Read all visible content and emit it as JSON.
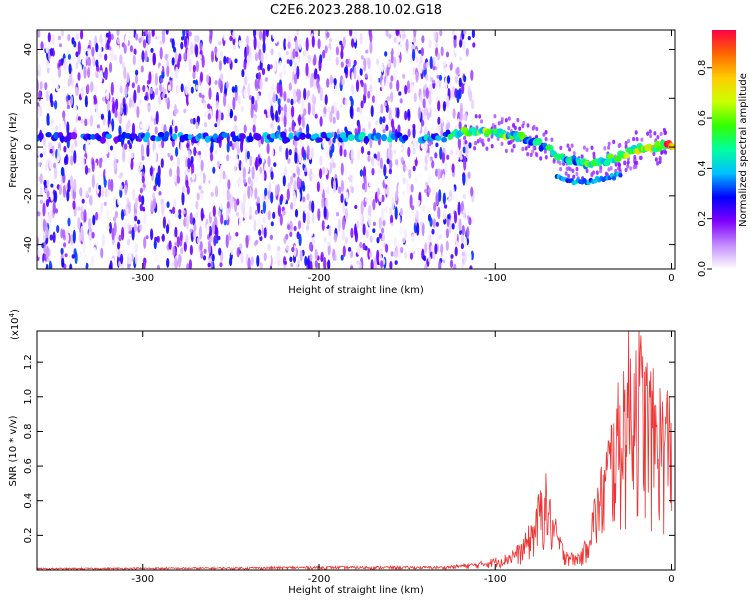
{
  "figure_title": "C2E6.2023.288.10.02.G18",
  "chart_data": [
    {
      "type": "heatmap",
      "xlabel": "Height of straight line (km)",
      "ylabel": "Frequency (Hz)",
      "xlim": [
        -360,
        2
      ],
      "ylim": [
        -50,
        48
      ],
      "x_ticks": [
        -300,
        -200,
        -100,
        0
      ],
      "x_tick_labels": [
        "-300",
        "-200",
        "-100",
        "0"
      ],
      "y_ticks": [
        -40,
        -20,
        0,
        20,
        40
      ],
      "y_tick_labels": [
        "-40",
        "-20",
        "0",
        "20",
        "40"
      ],
      "colorbar": {
        "label": "Normalized spectral amplitude",
        "range": [
          0,
          0.95
        ],
        "ticks": [
          0,
          0.2,
          0.4,
          0.6,
          0.8
        ],
        "tick_labels": [
          "0.0",
          "0.2",
          "0.4",
          "0.6",
          "0.8"
        ],
        "colormap": [
          "#ffffff",
          "#c48cff",
          "#7f00ff",
          "#0000ff",
          "#00bfff",
          "#00ff9f",
          "#33ff00",
          "#ccff00",
          "#ffcc00",
          "#ff6600",
          "#ff0044"
        ]
      },
      "noise_region": {
        "x_range": [
          -360,
          -118
        ],
        "y_range": [
          -50,
          48
        ]
      },
      "ridge": {
        "x": [
          -360,
          -300,
          -200,
          -130,
          -118,
          -100,
          -90,
          -80,
          -70,
          -60,
          -50,
          -40,
          -30,
          -20,
          -10,
          0
        ],
        "frequency": [
          4,
          4,
          4,
          4,
          6,
          6,
          5,
          3,
          -1,
          -5,
          -7,
          -6,
          -4,
          -1,
          0,
          1
        ],
        "amplitude": [
          0.3,
          0.35,
          0.4,
          0.4,
          0.55,
          0.6,
          0.6,
          0.5,
          0.5,
          0.45,
          0.55,
          0.6,
          0.5,
          0.7,
          0.85,
          0.9
        ]
      },
      "lower_branch": {
        "x": [
          -65,
          -55,
          -45,
          -35,
          -28
        ],
        "frequency": [
          -12,
          -14,
          -14,
          -12,
          -12
        ]
      }
    },
    {
      "type": "line",
      "xlabel": "Height of straight line (km)",
      "ylabel": "SNR (10 * v/v)",
      "y_multiplier_label": "(x10",
      "y_multiplier_exponent": "4",
      "y_multiplier_close": ")",
      "xlim": [
        -360,
        2
      ],
      "ylim": [
        0,
        1.38
      ],
      "x_ticks": [
        -300,
        -200,
        -100,
        0
      ],
      "x_tick_labels": [
        "-300",
        "-200",
        "-100",
        "0"
      ],
      "y_ticks": [
        0.2,
        0.4,
        0.6,
        0.8,
        1.0,
        1.2
      ],
      "y_tick_labels": [
        "0.2",
        "0.4",
        "0.6",
        "0.8",
        "1.0",
        "1.2"
      ],
      "color": "#ee3333",
      "envelope": {
        "x": [
          -360,
          -250,
          -200,
          -130,
          -110,
          -95,
          -85,
          -78,
          -72,
          -68,
          -62,
          -55,
          -50,
          -45,
          -40,
          -35,
          -30,
          -25,
          -20,
          -15,
          -10,
          -5,
          0
        ],
        "y": [
          0.01,
          0.015,
          0.02,
          0.02,
          0.04,
          0.08,
          0.15,
          0.3,
          0.55,
          0.35,
          0.15,
          0.08,
          0.12,
          0.35,
          0.55,
          0.8,
          1.0,
          1.25,
          1.38,
          1.2,
          1.05,
          1.0,
          1.0
        ]
      }
    }
  ]
}
